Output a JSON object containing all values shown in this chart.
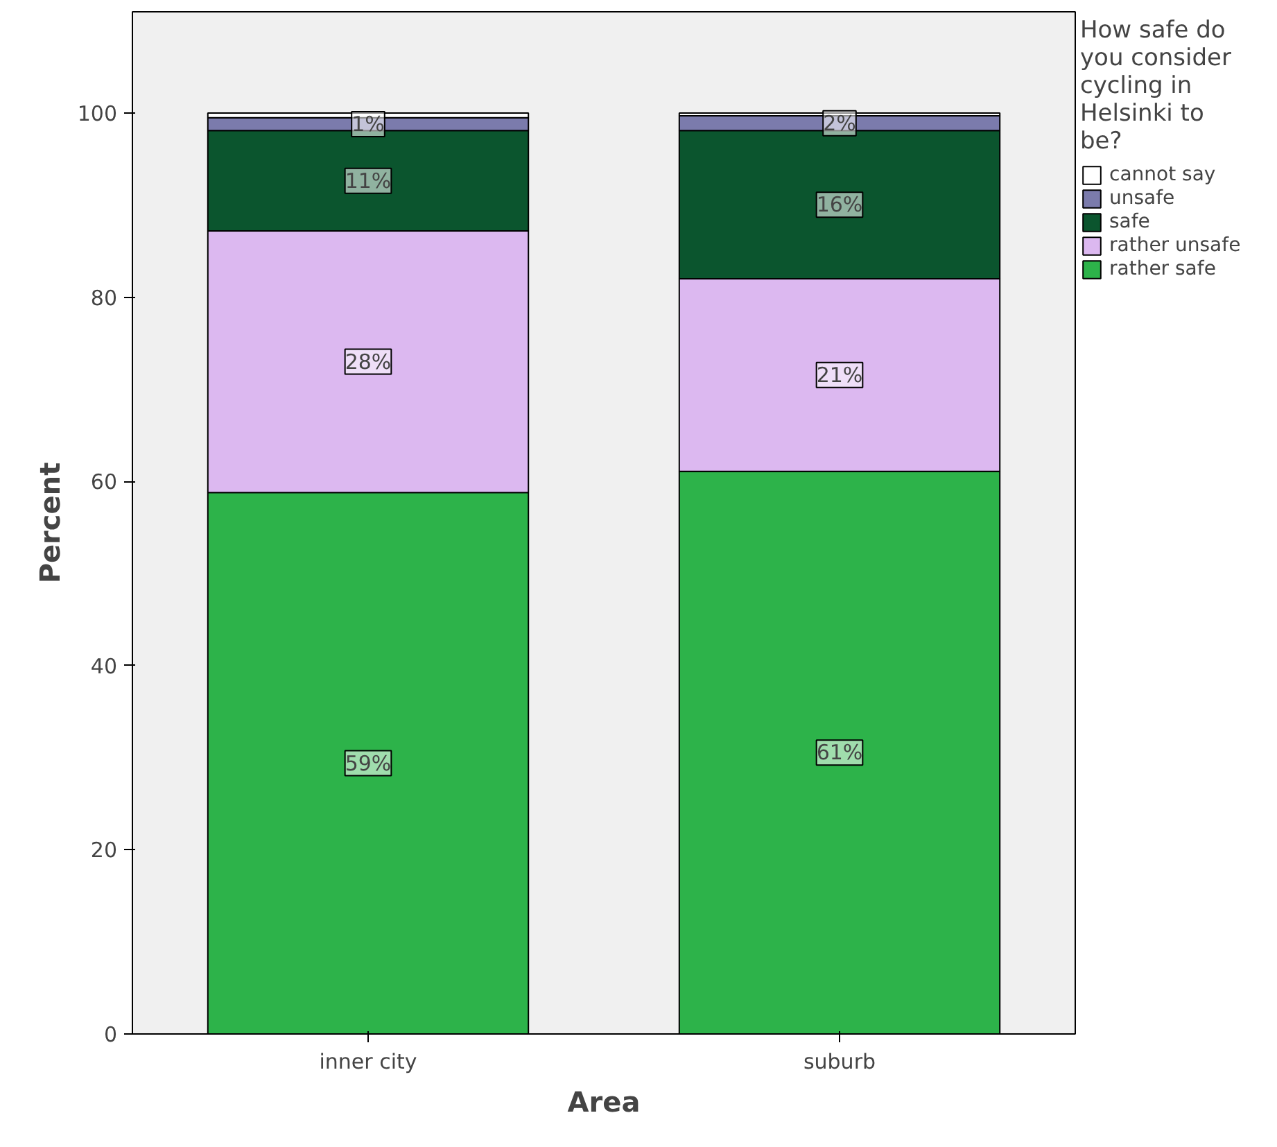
{
  "chart_data": {
    "type": "bar",
    "stacked": true,
    "xlabel": "Area",
    "ylabel": "Percent",
    "legend_title": "How safe do you consider cycling in Helsinki to be?",
    "categories": [
      "inner city",
      "suburb"
    ],
    "series": [
      {
        "name": "rather safe",
        "color": "#2db34a",
        "values": [
          58.8,
          61.1
        ],
        "value_labels": [
          "59%",
          "61%"
        ]
      },
      {
        "name": "rather unsafe",
        "color": "#dcb8f0",
        "values": [
          28.4,
          20.9
        ],
        "value_labels": [
          "28%",
          "21%"
        ]
      },
      {
        "name": "safe",
        "color": "#0b552e",
        "values": [
          10.9,
          16.1
        ],
        "value_labels": [
          "11%",
          "16%"
        ]
      },
      {
        "name": "unsafe",
        "color": "#7b7bac",
        "values": [
          1.4,
          1.6
        ],
        "value_labels": [
          "1%",
          "2%"
        ]
      },
      {
        "name": "cannot say",
        "color": "#ffffff",
        "values": [
          0.5,
          0.3
        ],
        "value_labels": [
          null,
          null
        ]
      }
    ],
    "ylim": [
      0,
      111
    ],
    "yticks": [
      0,
      20,
      40,
      60,
      80,
      100
    ],
    "grid": false,
    "legend": "right"
  }
}
